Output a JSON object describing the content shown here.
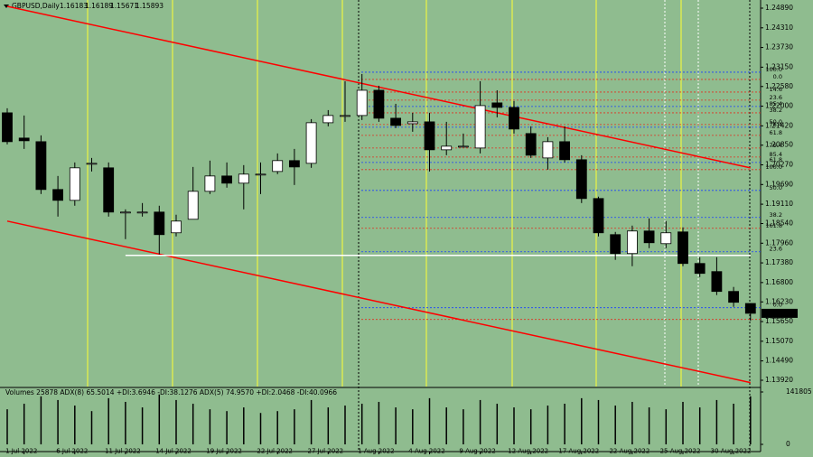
{
  "chart_data": {
    "type": "candlestick",
    "symbol": "GBPUSD,Daily",
    "indicator_legend": "Volumes 25878 ADX(8) 65.5014 +DI:3.6946 -DI:38.1276 ADX(5) 74.9570 +DI:2.0468 -DI:40.0966",
    "categories": [
      null,
      "1 Jul 2022",
      null,
      null,
      "6 Jul 2022",
      null,
      null,
      "11 Jul 2022",
      null,
      null,
      "14 Jul 2022",
      null,
      null,
      "19 Jul 2022",
      null,
      null,
      "22 Jul 2022",
      null,
      null,
      "27 Jul 2022",
      null,
      null,
      "1 Aug 2022",
      null,
      null,
      "4 Aug 2022",
      null,
      null,
      "9 Aug 2022",
      null,
      null,
      "12 Aug 2022",
      null,
      null,
      "17 Aug 2022",
      null,
      null,
      "22 Aug 2022",
      null,
      null,
      "25 Aug 2022",
      null,
      null,
      "30 Aug 2022",
      null
    ],
    "open": [
      1.21804,
      1.2106,
      1.20953,
      1.19543,
      1.19224,
      1.20315,
      1.20182,
      1.18878,
      1.18878,
      1.18878,
      1.18267,
      1.18666,
      1.1949,
      1.19942,
      1.1973,
      1.19996,
      1.20075,
      1.20395,
      1.20315,
      1.21512,
      1.21725,
      1.21725,
      1.22469,
      1.21645,
      1.21485,
      1.21538,
      1.20714,
      1.2082,
      1.20767,
      1.22097,
      1.21964,
      1.21193,
      1.20474,
      1.20953,
      1.20421,
      1.19277,
      1.18213,
      1.17655,
      1.1832,
      1.17947,
      1.18293,
      1.17362,
      1.17123,
      1.16538,
      1.16183
    ],
    "high": [
      1.21937,
      1.21725,
      1.21139,
      1.19942,
      1.20341,
      1.20474,
      1.20341,
      1.18958,
      1.19144,
      1.19065,
      1.18799,
      1.20208,
      1.20395,
      1.20341,
      1.20262,
      1.20341,
      1.20607,
      1.2074,
      1.21618,
      1.21884,
      1.22735,
      1.22948,
      1.22602,
      1.2207,
      1.21804,
      1.21804,
      1.21538,
      1.21193,
      1.22735,
      1.22469,
      1.2215,
      1.21405,
      1.21086,
      1.21405,
      1.20554,
      1.19331,
      1.18293,
      1.18479,
      1.18692,
      1.18612,
      1.18426,
      1.17548,
      1.17548,
      1.16671,
      1.16189
    ],
    "low": [
      1.20873,
      1.2074,
      1.1941,
      1.18745,
      1.19065,
      1.20075,
      1.18745,
      1.1808,
      1.18745,
      1.17628,
      1.1816,
      1.18666,
      1.1941,
      1.19597,
      1.18958,
      1.1941,
      1.19996,
      1.19676,
      1.20182,
      1.21405,
      1.21538,
      1.21592,
      1.21538,
      1.21352,
      1.21246,
      1.20075,
      1.20554,
      1.2082,
      1.20607,
      1.21671,
      1.21193,
      1.20474,
      1.20129,
      1.20341,
      1.19144,
      1.1816,
      1.17469,
      1.17282,
      1.17814,
      1.17814,
      1.17282,
      1.16963,
      1.16431,
      1.16085,
      1.15671
    ],
    "close": [
      1.20953,
      1.2098,
      1.19543,
      1.19224,
      1.20182,
      1.20315,
      1.18878,
      1.18878,
      1.18878,
      1.18213,
      1.18612,
      1.1949,
      1.19942,
      1.1973,
      1.19996,
      1.19996,
      1.20395,
      1.20208,
      1.21512,
      1.21725,
      1.21725,
      1.22469,
      1.21645,
      1.21432,
      1.21538,
      1.20714,
      1.2082,
      1.2082,
      1.22017,
      1.21964,
      1.21326,
      1.20554,
      1.20953,
      1.20421,
      1.19277,
      1.18267,
      1.17655,
      1.1832,
      1.17974,
      1.18267,
      1.17362,
      1.1707,
      1.16538,
      1.16218,
      1.15893
    ],
    "bull_color": "#ffffff",
    "bear_color": "#000000",
    "ylim": [
      1.13734,
      1.2513
    ],
    "yticks": [
      {
        "value": 1.2489,
        "label": "1.24890"
      },
      {
        "value": 1.2431,
        "label": "1.24310"
      },
      {
        "value": 1.2373,
        "label": "1.23730"
      },
      {
        "value": 1.2315,
        "label": "1.23150"
      },
      {
        "value": 1.2258,
        "label": "1.22580"
      },
      {
        "value": 1.22,
        "label": "1.22000"
      },
      {
        "value": 1.2142,
        "label": "1.21420"
      },
      {
        "value": 1.2085,
        "label": "1.20850"
      },
      {
        "value": 1.2027,
        "label": "1.20270"
      },
      {
        "value": 1.1969,
        "label": "1.19690"
      },
      {
        "value": 1.1911,
        "label": "1.19110"
      },
      {
        "value": 1.1854,
        "label": "1.18540"
      },
      {
        "value": 1.1796,
        "label": "1.17960"
      },
      {
        "value": 1.1738,
        "label": "1.17380"
      },
      {
        "value": 1.168,
        "label": "1.16800"
      },
      {
        "value": 1.1623,
        "label": "1.16230"
      },
      {
        "value": 1.1565,
        "label": "1.15650"
      },
      {
        "value": 1.1507,
        "label": "1.15070"
      },
      {
        "value": 1.1449,
        "label": "1.14490"
      },
      {
        "value": 1.1392,
        "label": "1.13920"
      }
    ],
    "trend_lines": [
      {
        "color": "#ff0000",
        "start": [
          0,
          1.24943
        ],
        "end": [
          44,
          1.20182
        ]
      },
      {
        "color": "#ff0000",
        "start": [
          0,
          1.18612
        ],
        "end": [
          44,
          1.13851
        ]
      },
      {
        "color": "#ffffff",
        "start": [
          7,
          1.17601
        ],
        "end": [
          44,
          1.17601
        ]
      }
    ],
    "fib_levels": [
      {
        "label": "100.0",
        "value": 1.23001,
        "color": "#1a3fff"
      },
      {
        "label": "85.4",
        "value": 1.21991,
        "color": "#1a3fff"
      },
      {
        "label": "76.4",
        "value": 1.21379,
        "color": "#1a3fff"
      },
      {
        "label": "61.8",
        "value": 1.20341,
        "color": "#1a3fff"
      },
      {
        "label": "50.0",
        "value": 1.19517,
        "color": "#1a3fff"
      },
      {
        "label": "38.2",
        "value": 1.18719,
        "color": "#1a3fff"
      },
      {
        "label": "23.6",
        "value": 1.17708,
        "color": "#1a3fff"
      },
      {
        "label": "0.0",
        "value": 1.16059,
        "color": "#1a3fff"
      },
      {
        "label": "0.0",
        "value": 1.22789,
        "color": "#e03020"
      },
      {
        "label": "14.6",
        "value": 1.22416,
        "color": "#e03020"
      },
      {
        "label": "23.6",
        "value": 1.22177,
        "color": "#e03020"
      },
      {
        "label": "38.2",
        "value": 1.21804,
        "color": "#e03020"
      },
      {
        "label": "50.0",
        "value": 1.21459,
        "color": "#e03020"
      },
      {
        "label": "61.8",
        "value": 1.21139,
        "color": "#e03020"
      },
      {
        "label": "76.4",
        "value": 1.20767,
        "color": "#e03020"
      },
      {
        "label": "85.4",
        "value": 1.20501,
        "color": "#e03020"
      },
      {
        "label": "100.0",
        "value": 1.20129,
        "color": "#e03020"
      },
      {
        "label": "161.8",
        "value": 1.184,
        "color": "#e03020"
      },
      {
        "label": "261.8",
        "value": 1.15713,
        "color": "#e03020"
      }
    ],
    "volumes": [
      95000,
      110000,
      130000,
      120000,
      105000,
      90000,
      125000,
      115000,
      100000,
      135000,
      120000,
      110000,
      95000,
      90000,
      100000,
      85000,
      90000,
      95000,
      120000,
      100000,
      105000,
      110000,
      115000,
      100000,
      95000,
      125000,
      100000,
      95000,
      120000,
      110000,
      100000,
      95000,
      105000,
      110000,
      125000,
      120000,
      105000,
      115000,
      100000,
      95000,
      115000,
      100000,
      120000,
      110000,
      130000
    ],
    "volume_ylim": [
      0,
      151585
    ],
    "volume_yticks": [
      0,
      141805
    ]
  }
}
